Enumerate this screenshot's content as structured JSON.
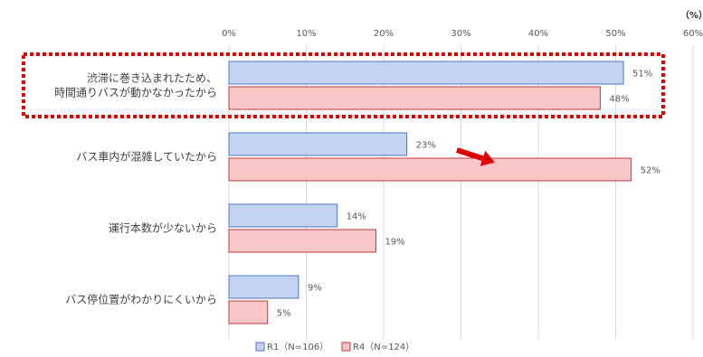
{
  "chart_data": {
    "type": "bar",
    "orientation": "horizontal",
    "unit_label": "（%）",
    "xlim": [
      0,
      60
    ],
    "x_ticks": [
      "0%",
      "10%",
      "20%",
      "30%",
      "40%",
      "50%",
      "60%"
    ],
    "grid": true,
    "legend_position": "bottom",
    "categories": [
      [
        "渋滞に巻き込まれたため、",
        "時間通りバスが動かなかったから"
      ],
      [
        "バス車内が混雑していたから"
      ],
      [
        "運行本数が少ないから"
      ],
      [
        "バス停位置がわかりにくいから"
      ]
    ],
    "series": [
      {
        "name": "R1（N=106）",
        "values": [
          51,
          23,
          14,
          9
        ],
        "labels": [
          "51%",
          "23%",
          "14%",
          "9%"
        ],
        "fill": "#c5d3f3",
        "stroke": "#4f74c6"
      },
      {
        "name": "R4（N=124）",
        "values": [
          48,
          52,
          19,
          5
        ],
        "labels": [
          "48%",
          "52%",
          "19%",
          "5%"
        ],
        "fill": "#f8c7c7",
        "stroke": "#c0393b"
      }
    ],
    "annotations": {
      "highlight_category_index": 0,
      "highlight_color": "#e00000",
      "arrow_category_index": 1,
      "arrow_color": "#e00000"
    }
  }
}
